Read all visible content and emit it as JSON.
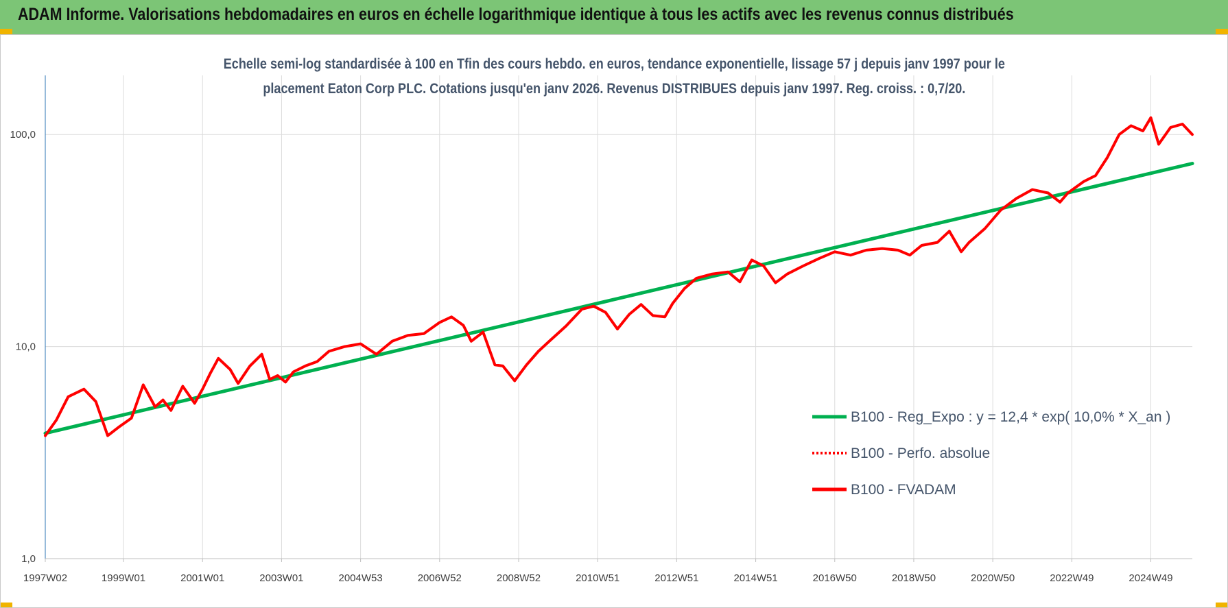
{
  "header": {
    "title": "ADAM Informe. Valorisations hebdomadaires en euros en échelle logarithmique identique à tous les actifs avec les revenus connus distribués"
  },
  "chart_data": {
    "type": "line",
    "log_y": true,
    "subtitle_lines": [
      "Echelle semi-log standardisée à 100 en Tfin des cours hebdo. en euros, tendance exponentielle, lissage 57 j depuis janv 1997 pour le",
      "placement Eaton Corp PLC. Cotations jusqu'en janv 2026. Revenus DISTRIBUES depuis janv 1997. Reg. croiss. : 0,7/20."
    ],
    "ylim": [
      1,
      190
    ],
    "y_ticks": [
      {
        "value": 1,
        "label": "1,0"
      },
      {
        "value": 10,
        "label": "10,0"
      },
      {
        "value": 100,
        "label": "100,0"
      }
    ],
    "x_range": [
      1997.02,
      2026.05
    ],
    "x_ticks": [
      {
        "x": 1997.02,
        "label": "1997W02"
      },
      {
        "x": 1999.0,
        "label": "1999W01"
      },
      {
        "x": 2001.0,
        "label": "2001W01"
      },
      {
        "x": 2003.0,
        "label": "2003W01"
      },
      {
        "x": 2005.0,
        "label": "2004W53"
      },
      {
        "x": 2007.0,
        "label": "2006W52"
      },
      {
        "x": 2009.0,
        "label": "2008W52"
      },
      {
        "x": 2011.0,
        "label": "2010W51"
      },
      {
        "x": 2013.0,
        "label": "2012W51"
      },
      {
        "x": 2015.0,
        "label": "2014W51"
      },
      {
        "x": 2017.0,
        "label": "2016W50"
      },
      {
        "x": 2019.0,
        "label": "2018W50"
      },
      {
        "x": 2021.0,
        "label": "2020W50"
      },
      {
        "x": 2023.0,
        "label": "2022W49"
      },
      {
        "x": 2025.0,
        "label": "2024W49"
      }
    ],
    "grid": "vertical and horizontal",
    "legend_position": "lower-right",
    "series": [
      {
        "name": "B100 - Reg_Expo : y = 12,4 * exp( 10,0% *  X_an )",
        "color": "#00b050",
        "style": "solid",
        "x": [
          1997.02,
          2026.05
        ],
        "y": [
          3.9,
          73
        ]
      },
      {
        "name": "B100 - Perfo. absolue",
        "color": "#ff0000",
        "style": "dotted",
        "x": [],
        "y": []
      },
      {
        "name": "B100 - FVADAM",
        "color": "#ff0000",
        "style": "solid",
        "x": [
          1997.02,
          1997.3,
          1997.6,
          1998.0,
          1998.3,
          1998.6,
          1998.9,
          1999.2,
          1999.5,
          1999.8,
          2000.0,
          2000.2,
          2000.5,
          2000.8,
          2001.0,
          2001.2,
          2001.4,
          2001.7,
          2001.9,
          2002.2,
          2002.5,
          2002.7,
          2002.9,
          2003.1,
          2003.3,
          2003.6,
          2003.9,
          2004.2,
          2004.6,
          2005.0,
          2005.4,
          2005.8,
          2006.2,
          2006.6,
          2007.0,
          2007.3,
          2007.6,
          2007.8,
          2008.1,
          2008.4,
          2008.6,
          2008.9,
          2009.2,
          2009.5,
          2009.8,
          2010.2,
          2010.6,
          2010.9,
          2011.2,
          2011.5,
          2011.8,
          2012.1,
          2012.4,
          2012.7,
          2012.9,
          2013.2,
          2013.5,
          2013.9,
          2014.3,
          2014.6,
          2014.9,
          2015.2,
          2015.5,
          2015.8,
          2016.2,
          2016.6,
          2017.0,
          2017.4,
          2017.8,
          2018.2,
          2018.6,
          2018.9,
          2019.2,
          2019.6,
          2019.9,
          2020.2,
          2020.4,
          2020.8,
          2021.2,
          2021.6,
          2022.0,
          2022.4,
          2022.7,
          2022.9,
          2023.3,
          2023.6,
          2023.9,
          2024.2,
          2024.5,
          2024.8,
          2025.0,
          2025.2,
          2025.5,
          2025.8,
          2026.05
        ],
        "y": [
          3.8,
          4.5,
          5.8,
          6.3,
          5.5,
          3.8,
          4.2,
          4.6,
          6.6,
          5.2,
          5.6,
          5.0,
          6.5,
          5.4,
          6.3,
          7.5,
          8.8,
          7.8,
          6.7,
          8.1,
          9.2,
          7.0,
          7.3,
          6.8,
          7.6,
          8.1,
          8.5,
          9.5,
          10.0,
          10.3,
          9.2,
          10.6,
          11.3,
          11.5,
          13.0,
          13.8,
          12.6,
          10.6,
          11.7,
          8.2,
          8.1,
          6.9,
          8.2,
          9.5,
          10.7,
          12.5,
          15.0,
          15.5,
          14.5,
          12.1,
          14.2,
          15.8,
          14.0,
          13.8,
          16.0,
          18.8,
          21.0,
          22.0,
          22.5,
          20.2,
          25.6,
          24.0,
          20.0,
          22.0,
          24.0,
          26.0,
          28.0,
          27.0,
          28.5,
          29.0,
          28.5,
          27.0,
          30.0,
          31.0,
          35.0,
          28.0,
          31.0,
          36.0,
          44.0,
          50.0,
          55.0,
          53.0,
          48.0,
          53.0,
          60.0,
          64.0,
          78.0,
          100.0,
          110.0,
          104.0,
          120.0,
          90.0,
          108.0,
          112.0,
          100.0
        ]
      }
    ]
  }
}
